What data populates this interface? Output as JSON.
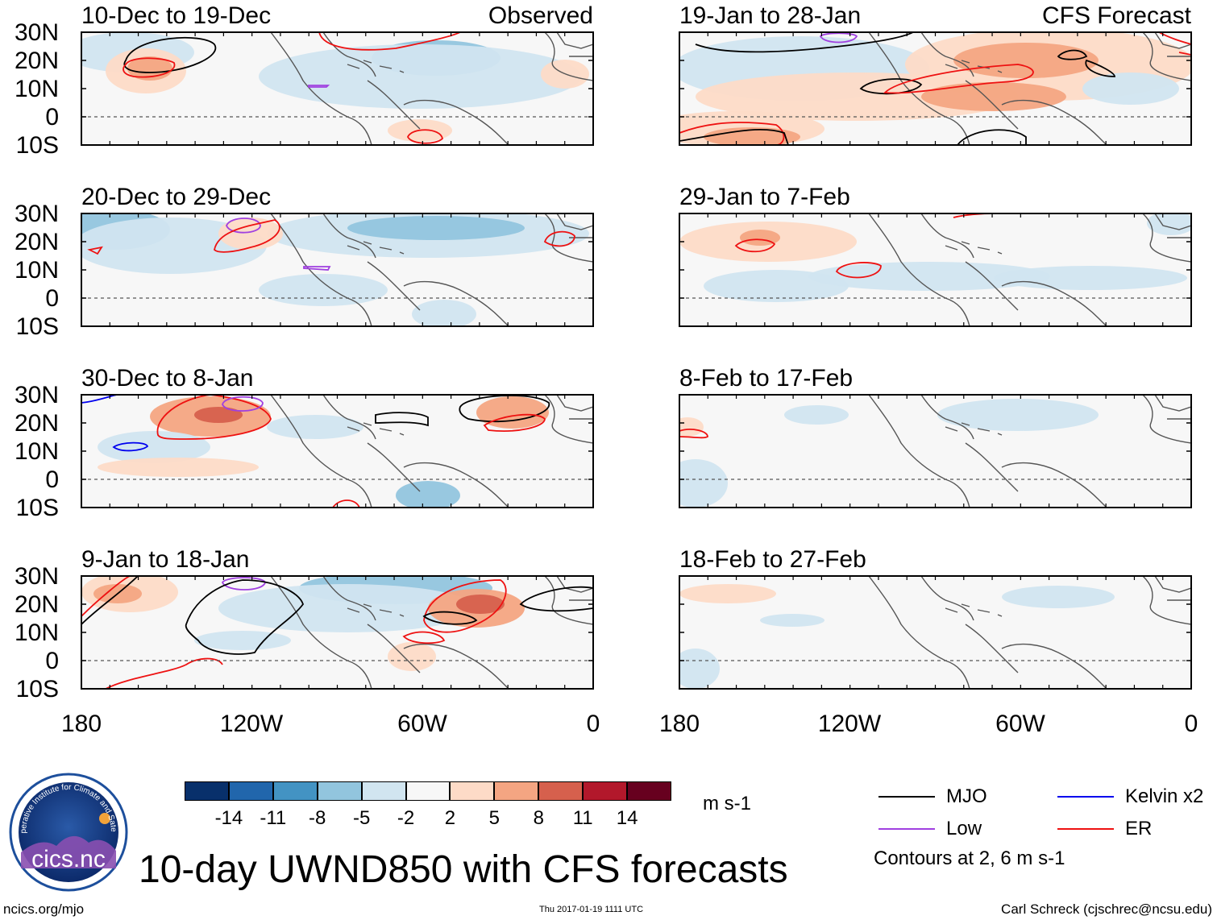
{
  "figure_title": "10-day UWND850 with CFS forecasts",
  "left_column_label": "Observed",
  "right_column_label": "CFS Forecast",
  "panels_left": [
    {
      "period": "10-Dec to 19-Dec"
    },
    {
      "period": "20-Dec to 29-Dec"
    },
    {
      "period": "30-Dec to 8-Jan"
    },
    {
      "period": "9-Jan to 18-Jan"
    }
  ],
  "panels_right": [
    {
      "period": "19-Jan to 28-Jan"
    },
    {
      "period": "29-Jan to 7-Feb"
    },
    {
      "period": "8-Feb to 17-Feb"
    },
    {
      "period": "18-Feb to 27-Feb"
    }
  ],
  "lat_labels": [
    "30N",
    "20N",
    "10N",
    "0",
    "10S"
  ],
  "lon_labels": [
    "180",
    "120W",
    "60W",
    "0"
  ],
  "colorbar": {
    "unit": "m s-1",
    "ticks": [
      "-14",
      "-11",
      "-8",
      "-5",
      "-2",
      "2",
      "5",
      "8",
      "11",
      "14"
    ],
    "colors": [
      "#08306b",
      "#2166ac",
      "#4393c3",
      "#92c5de",
      "#d1e5f0",
      "#f7f7f7",
      "#fddbc7",
      "#f4a582",
      "#d6604d",
      "#b2182b",
      "#67001f"
    ]
  },
  "legend": {
    "items": [
      {
        "label": "MJO",
        "color": "#000000"
      },
      {
        "label": "Kelvin x2",
        "color": "#0000ee"
      },
      {
        "label": "Low",
        "color": "#a040e0"
      },
      {
        "label": "ER",
        "color": "#ee1111"
      }
    ],
    "note": "Contours at 2, 6 m s-1"
  },
  "footer": {
    "left": "ncics.org/mjo",
    "center": "Thu 2017-01-19 1111 UTC",
    "right": "Carl Schreck (cjschrec@ncsu.edu)"
  },
  "logo": {
    "text": "cics.nc",
    "ring_text": "Cooperative Institute for Climate and Satellites"
  }
}
